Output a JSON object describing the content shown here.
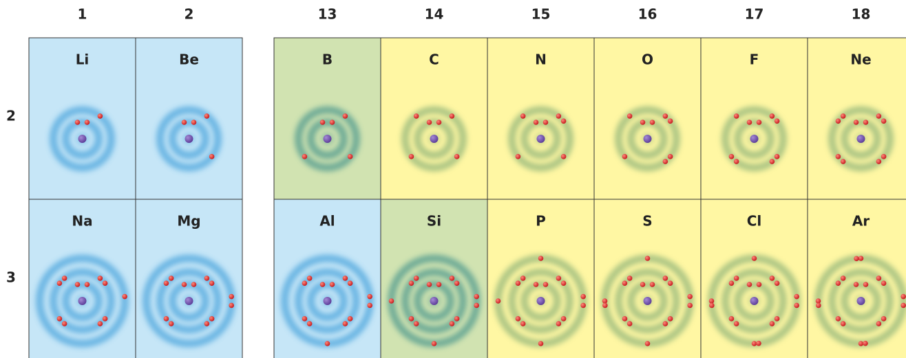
{
  "groups": [
    "1",
    "2",
    "13",
    "14",
    "15",
    "16",
    "17",
    "18"
  ],
  "periods": [
    "2",
    "3"
  ],
  "rows": [
    [
      "Li",
      "Be",
      "B",
      "C",
      "N",
      "O",
      "F",
      "Ne"
    ],
    [
      "Na",
      "Mg",
      "Al",
      "Si",
      "P",
      "S",
      "Cl",
      "Ar"
    ]
  ]
}
